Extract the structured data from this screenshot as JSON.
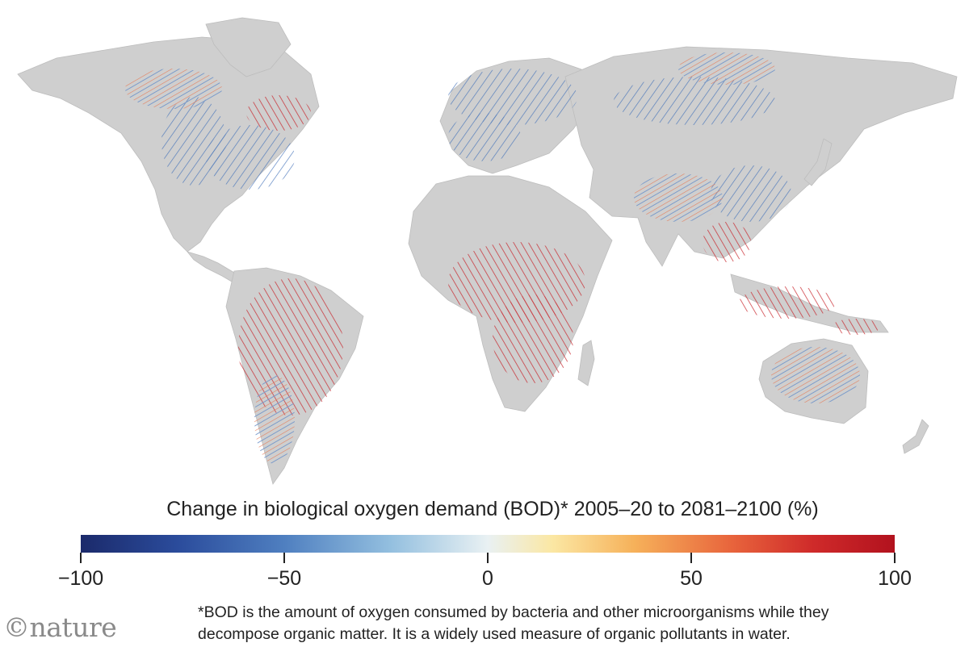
{
  "legend": {
    "title": "Change in biological oxygen demand (BOD)* 2005–20 to 2081–2100 (%)",
    "ticks": [
      {
        "value": -100,
        "label": "−100"
      },
      {
        "value": -50,
        "label": "−50"
      },
      {
        "value": 0,
        "label": "0"
      },
      {
        "value": 50,
        "label": "50"
      },
      {
        "value": 100,
        "label": "100"
      }
    ],
    "range": [
      -100,
      100
    ],
    "colors": [
      "#1b2a6b",
      "#4f7fc0",
      "#e9f1f3",
      "#f6b15a",
      "#b2121e"
    ]
  },
  "footnote": {
    "line1": "*BOD is the amount of oxygen consumed by bacteria and other microorganisms while they",
    "line2": "decompose organic matter. It is a widely used measure of organic pollutants in water."
  },
  "logo": {
    "text": "©nature"
  },
  "map": {
    "land_color": "#cfcfcf",
    "ocean_color": "#ffffff"
  }
}
